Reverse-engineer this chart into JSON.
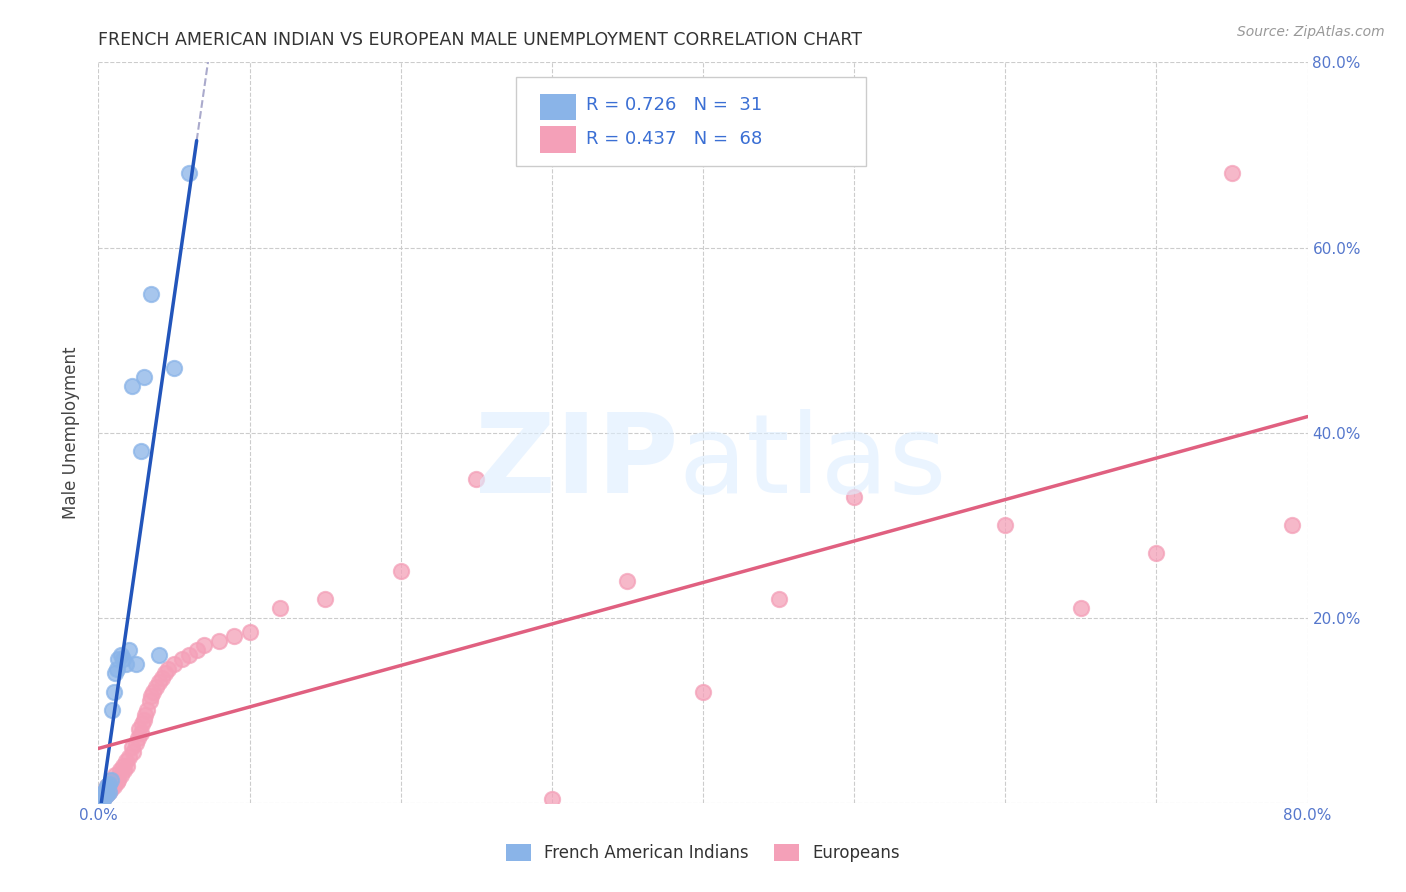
{
  "title": "FRENCH AMERICAN INDIAN VS EUROPEAN MALE UNEMPLOYMENT CORRELATION CHART",
  "source": "Source: ZipAtlas.com",
  "ylabel": "Male Unemployment",
  "xlim": [
    0,
    0.8
  ],
  "ylim": [
    0,
    0.8
  ],
  "color_blue": "#8ab4e8",
  "color_pink": "#f4a0b8",
  "color_blue_line": "#2255bb",
  "color_pink_line": "#e06080",
  "color_text": "#3b6fd4",
  "bg_color": "#ffffff",
  "grid_color": "#cccccc",
  "legend_R1": "R = 0.726",
  "legend_N1": "N =  31",
  "legend_R2": "R = 0.437",
  "legend_N2": "N =  68",
  "french_indians_x": [
    0.001,
    0.002,
    0.002,
    0.003,
    0.003,
    0.004,
    0.004,
    0.005,
    0.005,
    0.006,
    0.006,
    0.007,
    0.007,
    0.008,
    0.009,
    0.01,
    0.011,
    0.012,
    0.013,
    0.015,
    0.016,
    0.018,
    0.02,
    0.022,
    0.025,
    0.028,
    0.03,
    0.035,
    0.04,
    0.05,
    0.06
  ],
  "french_indians_y": [
    0.002,
    0.005,
    0.008,
    0.003,
    0.01,
    0.006,
    0.012,
    0.008,
    0.015,
    0.01,
    0.018,
    0.012,
    0.02,
    0.025,
    0.1,
    0.12,
    0.14,
    0.145,
    0.155,
    0.16,
    0.155,
    0.15,
    0.165,
    0.45,
    0.15,
    0.38,
    0.46,
    0.55,
    0.16,
    0.47,
    0.68
  ],
  "europeans_x": [
    0.001,
    0.002,
    0.002,
    0.003,
    0.003,
    0.003,
    0.004,
    0.004,
    0.005,
    0.005,
    0.006,
    0.006,
    0.007,
    0.008,
    0.008,
    0.009,
    0.01,
    0.01,
    0.011,
    0.012,
    0.013,
    0.014,
    0.015,
    0.016,
    0.017,
    0.018,
    0.019,
    0.02,
    0.022,
    0.023,
    0.025,
    0.026,
    0.027,
    0.028,
    0.029,
    0.03,
    0.031,
    0.032,
    0.034,
    0.035,
    0.036,
    0.038,
    0.04,
    0.042,
    0.044,
    0.046,
    0.05,
    0.055,
    0.06,
    0.065,
    0.07,
    0.08,
    0.09,
    0.1,
    0.12,
    0.15,
    0.2,
    0.25,
    0.3,
    0.35,
    0.4,
    0.45,
    0.5,
    0.6,
    0.65,
    0.7,
    0.75,
    0.79
  ],
  "europeans_y": [
    0.003,
    0.005,
    0.008,
    0.004,
    0.007,
    0.01,
    0.006,
    0.012,
    0.008,
    0.015,
    0.01,
    0.018,
    0.012,
    0.015,
    0.02,
    0.022,
    0.018,
    0.025,
    0.03,
    0.022,
    0.025,
    0.035,
    0.03,
    0.04,
    0.035,
    0.045,
    0.04,
    0.05,
    0.06,
    0.055,
    0.065,
    0.07,
    0.08,
    0.075,
    0.085,
    0.09,
    0.095,
    0.1,
    0.11,
    0.115,
    0.12,
    0.125,
    0.13,
    0.135,
    0.14,
    0.145,
    0.15,
    0.155,
    0.16,
    0.165,
    0.17,
    0.175,
    0.18,
    0.185,
    0.21,
    0.22,
    0.25,
    0.35,
    0.004,
    0.24,
    0.12,
    0.22,
    0.33,
    0.3,
    0.21,
    0.27,
    0.68,
    0.3
  ]
}
